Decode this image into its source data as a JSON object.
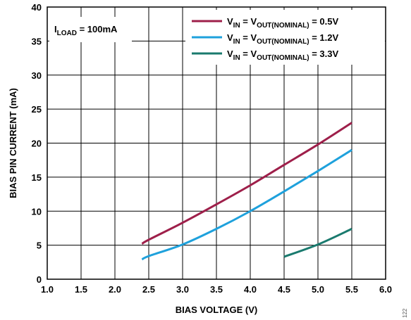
{
  "chart_data": {
    "type": "line",
    "xlabel": "BIAS VOLTAGE (V)",
    "ylabel": "BIAS PIN CURRENT (mA)",
    "xlim": [
      1.0,
      6.0
    ],
    "ylim": [
      0,
      40
    ],
    "x_ticks": [
      "1.0",
      "1.5",
      "2.0",
      "2.5",
      "3.0",
      "3.5",
      "4.0",
      "4.5",
      "5.0",
      "5.5",
      "6.0"
    ],
    "y_ticks": [
      "0",
      "5",
      "10",
      "15",
      "20",
      "25",
      "30",
      "35",
      "40"
    ],
    "grid": true,
    "legend_position": "top-right",
    "annotation": {
      "main": "I",
      "sub": "LOAD",
      "rest": " = 100mA"
    },
    "figure_id": "122",
    "series": [
      {
        "name": "VIN = VOUT(NOMINAL) = 0.5V",
        "label_parts": {
          "v1": "V",
          "s1": "IN",
          "mid": " = V",
          "s2": "OUT(NOMINAL)",
          "end": " = 0.5V"
        },
        "color": "#9e1f4a",
        "x": [
          2.4,
          2.5,
          3.0,
          3.5,
          4.0,
          4.5,
          5.0,
          5.5
        ],
        "y": [
          5.2,
          5.8,
          8.3,
          11.0,
          13.8,
          16.8,
          19.8,
          23.0
        ]
      },
      {
        "name": "VIN = VOUT(NOMINAL) = 1.2V",
        "label_parts": {
          "v1": "V",
          "s1": "IN",
          "mid": " = V",
          "s2": "OUT(NOMINAL)",
          "end": " = 1.2V"
        },
        "color": "#1ea1dc",
        "x": [
          2.4,
          2.5,
          3.0,
          3.5,
          4.0,
          4.5,
          5.0,
          5.5
        ],
        "y": [
          2.9,
          3.4,
          5.1,
          7.4,
          10.0,
          12.9,
          15.9,
          19.0
        ]
      },
      {
        "name": "VIN = VOUT(NOMINAL) = 3.3V",
        "label_parts": {
          "v1": "V",
          "s1": "IN",
          "mid": " = V",
          "s2": "OUT(NOMINAL)",
          "end": " = 3.3V"
        },
        "color": "#1a7a6e",
        "x": [
          4.5,
          5.0,
          5.5
        ],
        "y": [
          3.3,
          5.1,
          7.4
        ]
      }
    ]
  }
}
